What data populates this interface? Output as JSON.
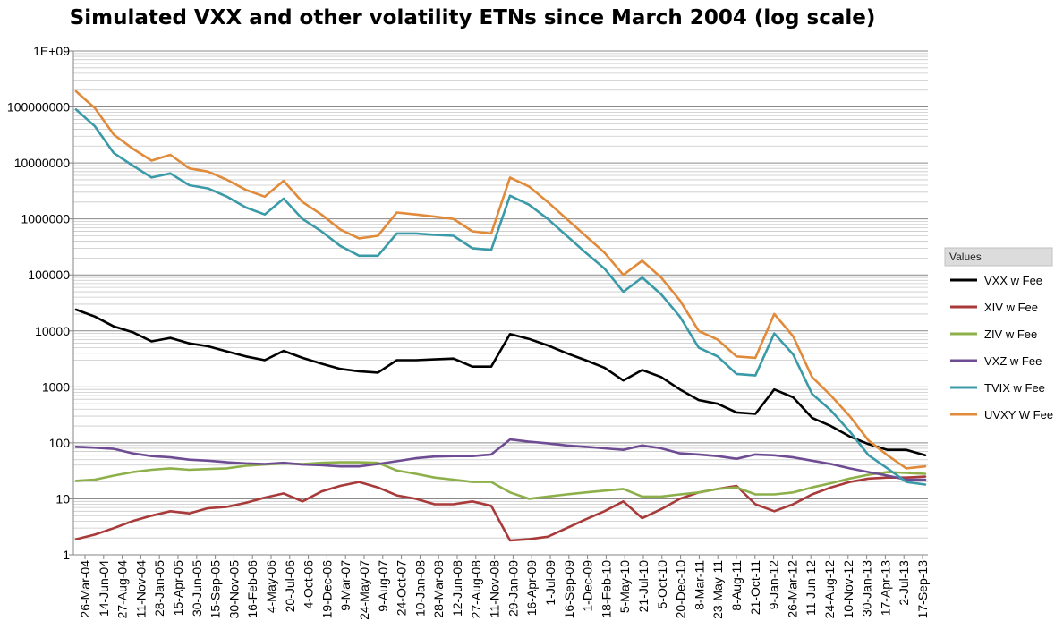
{
  "chart_data": {
    "type": "line",
    "title": "Simulated VXX and other volatility ETNs since March 2004 (log scale)",
    "y_scale": "log",
    "ylim": [
      1,
      1000000000
    ],
    "y_tick_values": [
      1,
      10,
      100,
      1000,
      10000,
      100000,
      1000000,
      10000000,
      100000000,
      1000000000
    ],
    "y_tick_labels": [
      "1",
      "10",
      "100",
      "1000",
      "10000",
      "100000",
      "1000000",
      "10000000",
      "100000000",
      "1E+09"
    ],
    "x_tick_labels": [
      "26-Mar-04",
      "14-Jun-04",
      "27-Aug-04",
      "11-Nov-04",
      "28-Jan-05",
      "15-Apr-05",
      "30-Jun-05",
      "15-Sep-05",
      "30-Nov-05",
      "16-Feb-06",
      "4-May-06",
      "20-Jul-06",
      "4-Oct-06",
      "19-Dec-06",
      "9-Mar-07",
      "24-May-07",
      "9-Aug-07",
      "24-Oct-07",
      "10-Jan-08",
      "28-Mar-08",
      "12-Jun-08",
      "27-Aug-08",
      "11-Nov-08",
      "29-Jan-09",
      "16-Apr-09",
      "1-Jul-09",
      "16-Sep-09",
      "1-Dec-09",
      "18-Feb-10",
      "5-May-10",
      "21-Jul-10",
      "5-Oct-10",
      "20-Dec-10",
      "8-Mar-11",
      "23-May-11",
      "8-Aug-11",
      "21-Oct-11",
      "9-Jan-12",
      "26-Mar-12",
      "11-Jun-12",
      "24-Aug-12",
      "10-Nov-12",
      "30-Jan-13",
      "17-Apr-13",
      "2-Jul-13",
      "17-Sep-13"
    ],
    "grid": true,
    "legend_title": "Values",
    "legend_position": "right",
    "series": [
      {
        "name": "VXX w Fee",
        "color": "#000000",
        "values": [
          24000,
          18000,
          12000,
          9500,
          6500,
          7500,
          6000,
          5300,
          4300,
          3500,
          3000,
          4400,
          3300,
          2600,
          2100,
          1900,
          1800,
          3000,
          3000,
          3100,
          3200,
          2300,
          2300,
          8800,
          7200,
          5500,
          4000,
          3000,
          2200,
          1300,
          2000,
          1500,
          900,
          580,
          500,
          350,
          330,
          900,
          650,
          280,
          200,
          130,
          95,
          75,
          75,
          60
        ]
      },
      {
        "name": "XIV w Fee",
        "color": "#a83a3a",
        "values": [
          1.9,
          2.3,
          3.0,
          4.0,
          5.0,
          6.0,
          5.5,
          6.8,
          7.2,
          8.5,
          10.5,
          12.5,
          9.0,
          13.5,
          17,
          20,
          16,
          11.5,
          10,
          8,
          8,
          9,
          7.5,
          1.8,
          1.9,
          2.1,
          3.0,
          4.3,
          6,
          9,
          4.5,
          6.5,
          10,
          13,
          15,
          17,
          8,
          6,
          8,
          12,
          16,
          20,
          23,
          24,
          24,
          25
        ]
      },
      {
        "name": "ZIV w Fee",
        "color": "#8db04a",
        "values": [
          21,
          22,
          26,
          30,
          33,
          35,
          33,
          34,
          35,
          39,
          41,
          43,
          42,
          44,
          45,
          45,
          44,
          32,
          28,
          24,
          22,
          20,
          20,
          13,
          10,
          11,
          12,
          13,
          14,
          15,
          11,
          11,
          12,
          13,
          15,
          16,
          12,
          12,
          13,
          16,
          19,
          23,
          27,
          30,
          29,
          28
        ]
      },
      {
        "name": "VXZ w Fee",
        "color": "#6e4c93",
        "values": [
          85,
          82,
          78,
          65,
          58,
          55,
          50,
          48,
          45,
          43,
          42,
          44,
          41,
          40,
          38,
          38,
          42,
          47,
          53,
          57,
          58,
          58,
          62,
          115,
          105,
          98,
          90,
          85,
          80,
          75,
          90,
          80,
          65,
          62,
          58,
          52,
          62,
          60,
          55,
          48,
          42,
          35,
          30,
          26,
          22,
          22
        ]
      },
      {
        "name": "TVIX w Fee",
        "color": "#3b9aa8",
        "values": [
          90000000,
          45000000,
          15000000,
          9000000,
          5500000,
          6500000,
          4000000,
          3500000,
          2500000,
          1600000,
          1200000,
          2300000,
          1000000,
          600000,
          330000,
          220000,
          220000,
          550000,
          550000,
          520000,
          500000,
          300000,
          280000,
          2600000,
          1800000,
          1000000,
          500000,
          250000,
          130000,
          50000,
          90000,
          45000,
          18000,
          5000,
          3500,
          1700,
          1600,
          9000,
          3800,
          750,
          380,
          160,
          60,
          35,
          20,
          18
        ]
      },
      {
        "name": "UVXY W Fee",
        "color": "#e08a3a",
        "values": [
          190000000,
          95000000,
          32000000,
          18000000,
          11000000,
          14000000,
          8000000,
          7000000,
          5000000,
          3300000,
          2500000,
          4800000,
          2000000,
          1200000,
          650000,
          450000,
          500000,
          1300000,
          1200000,
          1100000,
          1000000,
          600000,
          550000,
          5500000,
          3800000,
          2000000,
          1000000,
          500000,
          250000,
          100000,
          180000,
          90000,
          35000,
          10000,
          7000,
          3500,
          3300,
          20000,
          8000,
          1500,
          700,
          300,
          110,
          60,
          35,
          38
        ]
      }
    ]
  }
}
